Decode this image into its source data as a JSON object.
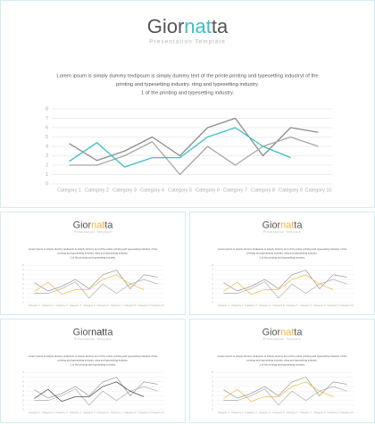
{
  "slides": [
    {
      "title": [
        "Gior",
        "nat",
        "ta"
      ],
      "subtitle": "Presentation Template",
      "accent": "#3cbfc8",
      "body": [
        "Lorem ipsum is simply dummy textipsum is simply dummy text of the printe printing and typesetting industryt of the",
        "printing and typesetting industry. rting and typesetting industry.",
        "1 of the printing and typesetting industry."
      ]
    },
    {
      "title": [
        "Gior",
        "nat",
        "ta"
      ],
      "subtitle": "Presentation Template",
      "accent": "#f2b233",
      "body": [
        "Lorem ipsum is simply dummy textipsum is simply dummy text of the printe printing and typesetting industryt of the",
        "printing and typesetting industry. rting and typesetting industry.",
        "1 of the printing and typesetting industry."
      ]
    },
    {
      "title": [
        "Gior",
        "nat",
        "ta"
      ],
      "subtitle": "Presentation Template",
      "accent": "#f2b233",
      "body": [
        "Lorem ipsum is simply dummy textipsum is simply dummy text of the printe printing and typesetting industryt of the",
        "printing and typesetting industry. rting and typesetting industry.",
        "1 of the printing and typesetting industry."
      ]
    },
    {
      "title": [
        "Gior",
        "nat",
        "ta"
      ],
      "subtitle": "Presentation Template",
      "accent": "#333333",
      "body": [
        "Lorem ipsum is simply dummy textipsum is simply dummy text of the printe printing and typesetting industryt of the",
        "printing and typesetting industry. rting and typesetting industry.",
        "1 of the printing and typesetting industry."
      ]
    },
    {
      "title": [
        "Gior",
        "nat",
        "ta"
      ],
      "subtitle": "Presentation Template",
      "accent": "#f2b233",
      "body": [
        "Lorem ipsum is simply dummy textipsum is simply dummy text of the printe printing and typesetting industryt of the",
        "printing and typesetting industry. rting and typesetting industry.",
        "1 of the printing and typesetting industry."
      ]
    }
  ],
  "chart_data": [
    {
      "type": "line",
      "categories": [
        "Category 1",
        "Category 2",
        "Category 3",
        "Category 4",
        "Category 5",
        "Category 6",
        "Category 7",
        "Category 8",
        "Category 9",
        "Category 10"
      ],
      "ylim": [
        0,
        8
      ],
      "yticks": [
        0,
        1,
        2,
        3,
        4,
        5,
        6,
        7,
        8
      ],
      "grid": true,
      "series": [
        {
          "color": "#8c8c8c",
          "values": [
            4.3,
            2.5,
            3.5,
            5,
            3,
            6,
            7,
            3,
            6,
            5.5
          ]
        },
        {
          "color": "#a6a6a6",
          "values": [
            2,
            2,
            3,
            4.5,
            1,
            4,
            2,
            4,
            5,
            4
          ]
        },
        {
          "color": "#3cbfc8",
          "values": [
            2.4,
            4.4,
            1.8,
            2.8,
            2.8,
            5,
            6,
            4,
            2.8,
            null
          ]
        }
      ]
    },
    {
      "type": "line",
      "categories": [
        "Category 1",
        "Category 2",
        "Category 3",
        "Category 4",
        "Category 5",
        "Category 6",
        "Category 7",
        "Category 8",
        "Category 9",
        "Category 10"
      ],
      "ylim": [
        0,
        8
      ],
      "yticks": [
        0,
        1,
        2,
        3,
        4,
        5,
        6,
        7,
        8
      ],
      "grid": true,
      "series": [
        {
          "color": "#8c8c8c",
          "values": [
            4.3,
            2.5,
            3.5,
            5,
            3,
            6,
            7,
            3,
            6,
            5.5
          ]
        },
        {
          "color": "#a6a6a6",
          "values": [
            2,
            2,
            3,
            4.5,
            1,
            4,
            2,
            4,
            5,
            4
          ]
        },
        {
          "color": "#f2b233",
          "values": [
            2.4,
            4.4,
            1.8,
            2.8,
            2.8,
            5,
            6,
            4,
            2.8,
            null
          ]
        }
      ]
    },
    {
      "type": "line",
      "categories": [
        "Category 1",
        "Category 2",
        "Category 3",
        "Category 4",
        "Category 5",
        "Category 6",
        "Category 7",
        "Category 8",
        "Category 9",
        "Category 10"
      ],
      "ylim": [
        0,
        8
      ],
      "yticks": [
        0,
        1,
        2,
        3,
        4,
        5,
        6,
        7,
        8
      ],
      "grid": true,
      "series": [
        {
          "color": "#8c8c8c",
          "values": [
            4.3,
            2.5,
            3.5,
            5,
            3,
            6,
            7,
            3,
            6,
            5.5
          ]
        },
        {
          "color": "#a6a6a6",
          "values": [
            2,
            2,
            3,
            4.5,
            1,
            4,
            2,
            4,
            5,
            4
          ]
        },
        {
          "color": "#f2b233",
          "values": [
            2.4,
            4.4,
            1.8,
            2.8,
            2.8,
            5,
            6,
            4,
            2.8,
            null
          ]
        }
      ]
    },
    {
      "type": "line",
      "categories": [
        "Category 1",
        "Category 2",
        "Category 3",
        "Category 4",
        "Category 5",
        "Category 6",
        "Category 7",
        "Category 8",
        "Category 9",
        "Category 10"
      ],
      "ylim": [
        0,
        8
      ],
      "yticks": [
        0,
        1,
        2,
        3,
        4,
        5,
        6,
        7,
        8
      ],
      "grid": true,
      "series": [
        {
          "color": "#8c8c8c",
          "values": [
            4.3,
            2.5,
            3.5,
            5,
            3,
            6,
            7,
            3,
            6,
            5.5
          ]
        },
        {
          "color": "#a6a6a6",
          "values": [
            2,
            2,
            3,
            4.5,
            1,
            4,
            2,
            4,
            5,
            4
          ]
        },
        {
          "color": "#333333",
          "values": [
            2.4,
            4.4,
            1.8,
            2.8,
            2.8,
            5,
            6,
            4,
            2.8,
            null
          ]
        }
      ]
    },
    {
      "type": "line",
      "categories": [
        "Category 1",
        "Category 2",
        "Category 3",
        "Category 4",
        "Category 5",
        "Category 6",
        "Category 7",
        "Category 8",
        "Category 9",
        "Category 10"
      ],
      "ylim": [
        0,
        8
      ],
      "yticks": [
        0,
        1,
        2,
        3,
        4,
        5,
        6,
        7,
        8
      ],
      "grid": true,
      "series": [
        {
          "color": "#8c8c8c",
          "values": [
            4.3,
            2.5,
            3.5,
            5,
            3,
            6,
            7,
            3,
            6,
            5.5
          ]
        },
        {
          "color": "#a6a6a6",
          "values": [
            2,
            2,
            3,
            4.5,
            1,
            4,
            2,
            4,
            5,
            4
          ]
        },
        {
          "color": "#f2b233",
          "values": [
            2.4,
            4.4,
            1.8,
            2.8,
            2.8,
            5,
            6,
            4,
            2.8,
            null
          ]
        }
      ]
    }
  ]
}
